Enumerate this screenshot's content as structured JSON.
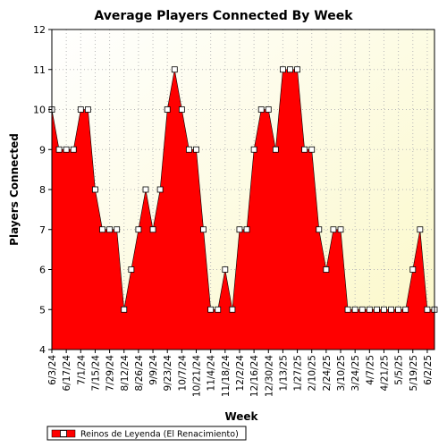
{
  "chart_data": {
    "type": "area",
    "title": "Average Players Connected By Week",
    "xlabel": "Week",
    "ylabel": "Players Connected",
    "ylim": [
      4,
      12
    ],
    "yticks": [
      4,
      5,
      6,
      7,
      8,
      9,
      10,
      11,
      12
    ],
    "grid": true,
    "legend_position": "bottom-left",
    "tick_labels": [
      "6/3/24",
      "6/17/24",
      "7/1/24",
      "7/15/24",
      "7/29/24",
      "8/12/24",
      "8/26/24",
      "9/9/24",
      "9/23/24",
      "10/7/24",
      "10/21/24",
      "11/4/24",
      "11/18/24",
      "12/2/24",
      "12/16/24",
      "12/30/24",
      "1/13/25",
      "1/27/25",
      "2/10/25",
      "2/24/25",
      "3/10/25",
      "3/24/25",
      "4/7/25",
      "4/21/25",
      "5/5/25",
      "5/19/25",
      "6/2/25"
    ],
    "series": [
      {
        "name": "Reinos de Leyenda (El Renacimiento)",
        "color": "#ff0000",
        "values": [
          10,
          9,
          9,
          9,
          10,
          10,
          8,
          7,
          7,
          7,
          5,
          6,
          7,
          8,
          7,
          8,
          10,
          11,
          10,
          9,
          9,
          7,
          5,
          5,
          6,
          5,
          7,
          7,
          9,
          10,
          10,
          9,
          11,
          11,
          11,
          9,
          9,
          7,
          6,
          7,
          7,
          5,
          5,
          5,
          5,
          5,
          5,
          5,
          5,
          5,
          6,
          7,
          5,
          5
        ]
      }
    ]
  }
}
